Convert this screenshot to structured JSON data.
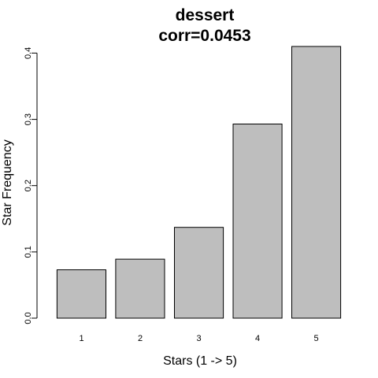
{
  "chart_data": {
    "type": "bar",
    "title": "dessert",
    "subtitle": "corr=0.0453",
    "xlabel": "Stars (1 -> 5)",
    "ylabel": "Star Frequency",
    "categories": [
      "1",
      "2",
      "3",
      "4",
      "5"
    ],
    "values": [
      0.073,
      0.089,
      0.137,
      0.293,
      0.41
    ],
    "ylim": [
      0,
      0.41
    ],
    "yticks": [
      "0.0",
      "0.1",
      "0.2",
      "0.3",
      "0.4"
    ],
    "grid": false,
    "legend": "none",
    "colors": {
      "bar_fill": "#bebebe",
      "bar_stroke": "#000000",
      "axis": "#000000"
    }
  }
}
